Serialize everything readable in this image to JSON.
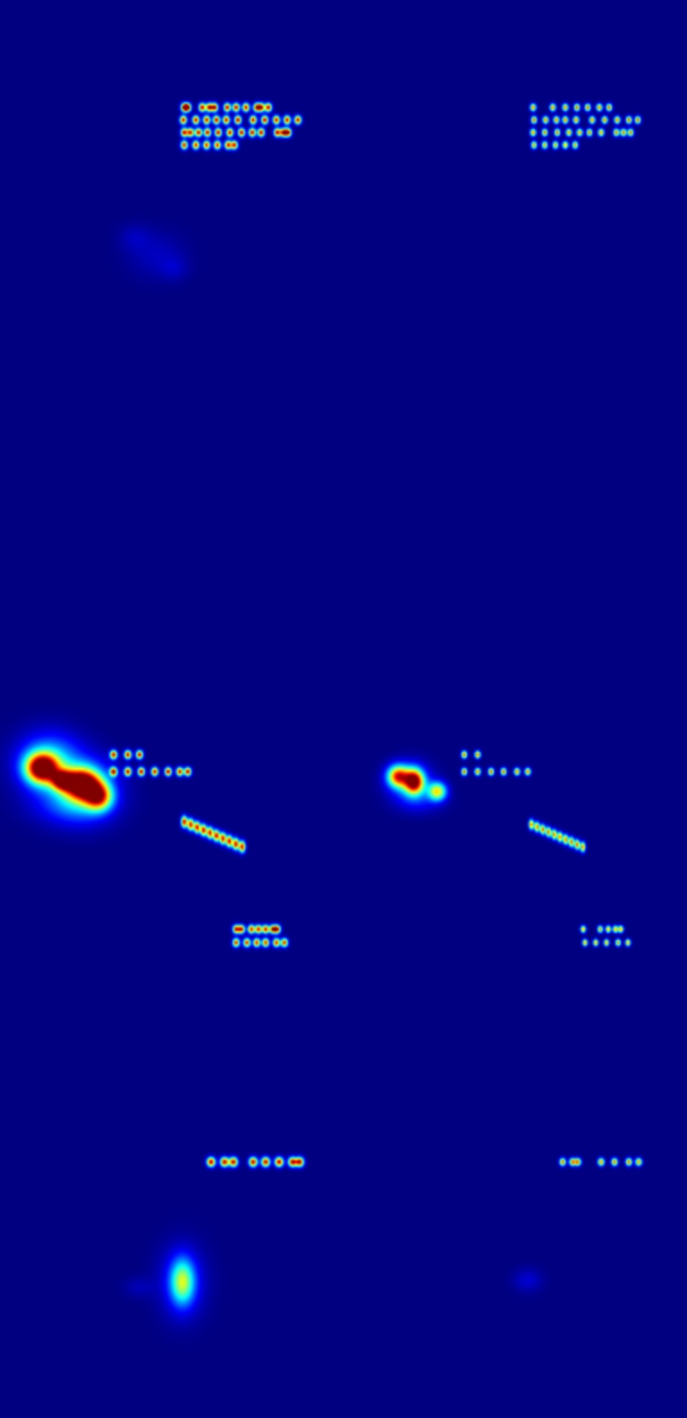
{
  "figure": {
    "kind": "attention-heatmap",
    "colormap": "jet",
    "background_color": "#00007f"
  },
  "regions": [
    {
      "name": "text-block-top-left"
    },
    {
      "name": "text-block-top-right"
    },
    {
      "name": "faint-blob-upper-left"
    },
    {
      "name": "hot-blob-mid-left"
    },
    {
      "name": "text-block-mid-left"
    },
    {
      "name": "diagonal-text-left"
    },
    {
      "name": "warm-blob-mid-right"
    },
    {
      "name": "text-block-mid-right"
    },
    {
      "name": "diagonal-text-right"
    },
    {
      "name": "small-text-lower-left"
    },
    {
      "name": "small-text-lower-right"
    },
    {
      "name": "text-row-bottom-left"
    },
    {
      "name": "text-row-bottom-right"
    },
    {
      "name": "glow-bottom-left"
    },
    {
      "name": "faint-glow-bottom-right"
    }
  ]
}
